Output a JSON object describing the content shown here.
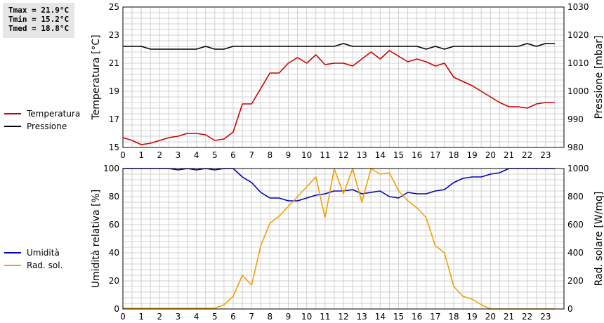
{
  "stats": {
    "tmax": "Tmax = 21.9°C",
    "tmin": "Tmin = 15.2°C",
    "tmed": "Tmed = 18.8°C"
  },
  "colors": {
    "temperature": "#cc0000",
    "pressure": "#000000",
    "humidity": "#0000bb",
    "radiation": "#f0a000",
    "grid": "#d0d0d0"
  },
  "chart_data": [
    {
      "type": "line",
      "title": "",
      "xlabel": "",
      "ylabel": "Temperatura [°C]",
      "ylabel_right": "Pressione [mbar]",
      "xlim": [
        0,
        24
      ],
      "ylim": [
        15,
        25
      ],
      "ylim_right": [
        980,
        1030
      ],
      "x_ticks": [
        0,
        1,
        2,
        3,
        4,
        5,
        6,
        7,
        8,
        9,
        10,
        11,
        12,
        13,
        14,
        15,
        16,
        17,
        18,
        19,
        20,
        21,
        22,
        23
      ],
      "y_ticks": [
        15,
        17,
        19,
        21,
        23,
        25
      ],
      "y_ticks_right": [
        980,
        990,
        1000,
        1010,
        1020,
        1030
      ],
      "grid": true,
      "legend_position": "left",
      "series": [
        {
          "name": "Temperatura",
          "axis": "left",
          "x": [
            0,
            0.5,
            1,
            1.5,
            2,
            2.5,
            3,
            3.5,
            4,
            4.5,
            5,
            5.5,
            6,
            6.5,
            7,
            7.5,
            8,
            8.5,
            9,
            9.5,
            10,
            10.5,
            11,
            11.5,
            12,
            12.5,
            13,
            13.5,
            14,
            14.5,
            15,
            15.5,
            16,
            16.5,
            17,
            17.5,
            18,
            18.5,
            19,
            19.5,
            20,
            20.5,
            21,
            21.5,
            22,
            22.5,
            23,
            23.5
          ],
          "y": [
            15.7,
            15.5,
            15.2,
            15.3,
            15.5,
            15.7,
            15.8,
            16.0,
            16.0,
            15.9,
            15.5,
            15.6,
            16.1,
            18.1,
            18.1,
            19.2,
            20.3,
            20.3,
            21.0,
            21.4,
            21.0,
            21.6,
            20.9,
            21.0,
            21.0,
            20.8,
            21.3,
            21.8,
            21.3,
            21.9,
            21.5,
            21.1,
            21.3,
            21.1,
            20.8,
            21.0,
            20.0,
            19.7,
            19.4,
            19.0,
            18.6,
            18.2,
            17.9,
            17.9,
            17.8,
            18.1,
            18.2,
            18.2
          ]
        },
        {
          "name": "Pressione",
          "axis": "right",
          "x": [
            0,
            0.5,
            1,
            1.5,
            2,
            2.5,
            3,
            3.5,
            4,
            4.5,
            5,
            5.5,
            6,
            6.5,
            7,
            7.5,
            8,
            8.5,
            9,
            9.5,
            10,
            10.5,
            11,
            11.5,
            12,
            12.5,
            13,
            13.5,
            14,
            14.5,
            15,
            15.5,
            16,
            16.5,
            17,
            17.5,
            18,
            18.5,
            19,
            19.5,
            20,
            20.5,
            21,
            21.5,
            22,
            22.5,
            23,
            23.5
          ],
          "y": [
            1016,
            1016,
            1016,
            1015,
            1015,
            1015,
            1015,
            1015,
            1015,
            1016,
            1015,
            1015,
            1016,
            1016,
            1016,
            1016,
            1016,
            1016,
            1016,
            1016,
            1016,
            1016,
            1016,
            1016,
            1017,
            1016,
            1016,
            1016,
            1016,
            1016,
            1016,
            1016,
            1016,
            1015,
            1016,
            1015,
            1016,
            1016,
            1016,
            1016,
            1016,
            1016,
            1016,
            1016,
            1017,
            1016,
            1017,
            1017
          ]
        }
      ]
    },
    {
      "type": "line",
      "title": "",
      "xlabel": "",
      "ylabel": "Umidità relativa [%]",
      "ylabel_right": "Rad. solare [W/mq]",
      "xlim": [
        0,
        24
      ],
      "ylim": [
        0,
        100
      ],
      "ylim_right": [
        0,
        1000
      ],
      "x_ticks": [
        0,
        1,
        2,
        3,
        4,
        5,
        6,
        7,
        8,
        9,
        10,
        11,
        12,
        13,
        14,
        15,
        16,
        17,
        18,
        19,
        20,
        21,
        22,
        23
      ],
      "y_ticks": [
        0,
        20,
        40,
        60,
        80,
        100
      ],
      "y_ticks_right": [
        0,
        200,
        400,
        600,
        800,
        1000
      ],
      "grid": true,
      "legend_position": "left",
      "series": [
        {
          "name": "Umidità",
          "axis": "left",
          "x": [
            0,
            0.5,
            1,
            1.5,
            2,
            2.5,
            3,
            3.5,
            4,
            4.5,
            5,
            5.5,
            6,
            6.5,
            7,
            7.5,
            8,
            8.5,
            9,
            9.5,
            10,
            10.5,
            11,
            11.5,
            12,
            12.5,
            13,
            13.5,
            14,
            14.5,
            15,
            15.5,
            16,
            16.5,
            17,
            17.5,
            18,
            18.5,
            19,
            19.5,
            20,
            20.5,
            21,
            21.5,
            22,
            22.5,
            23,
            23.5
          ],
          "y": [
            100,
            100,
            100,
            100,
            100,
            100,
            99,
            100,
            99,
            100,
            99,
            100,
            100,
            94,
            90,
            83,
            79,
            79,
            77,
            77,
            79,
            81,
            82,
            84,
            84,
            85,
            82,
            83,
            84,
            80,
            79,
            83,
            82,
            82,
            84,
            85,
            90,
            93,
            94,
            94,
            96,
            97,
            100,
            100,
            100,
            100,
            100,
            100
          ]
        },
        {
          "name": "Rad. sol.",
          "axis": "right",
          "x": [
            0,
            0.5,
            1,
            1.5,
            2,
            2.5,
            3,
            3.5,
            4,
            4.5,
            5,
            5.5,
            6,
            6.5,
            7,
            7.5,
            8,
            8.5,
            9,
            9.5,
            10,
            10.5,
            11,
            11.5,
            12,
            12.5,
            13,
            13.5,
            14,
            14.5,
            15,
            15.5,
            16,
            16.5,
            17,
            17.5,
            18,
            18.5,
            19,
            19.5,
            20,
            20.5,
            21,
            21.5,
            22,
            22.5,
            23,
            23.5
          ],
          "y": [
            5,
            5,
            5,
            5,
            5,
            5,
            5,
            5,
            5,
            5,
            5,
            30,
            90,
            240,
            170,
            450,
            610,
            660,
            730,
            800,
            870,
            940,
            650,
            1000,
            820,
            1000,
            760,
            1000,
            960,
            970,
            840,
            770,
            720,
            650,
            450,
            400,
            160,
            90,
            70,
            30,
            0,
            0,
            0,
            0,
            0,
            0,
            0,
            0
          ]
        }
      ]
    }
  ]
}
